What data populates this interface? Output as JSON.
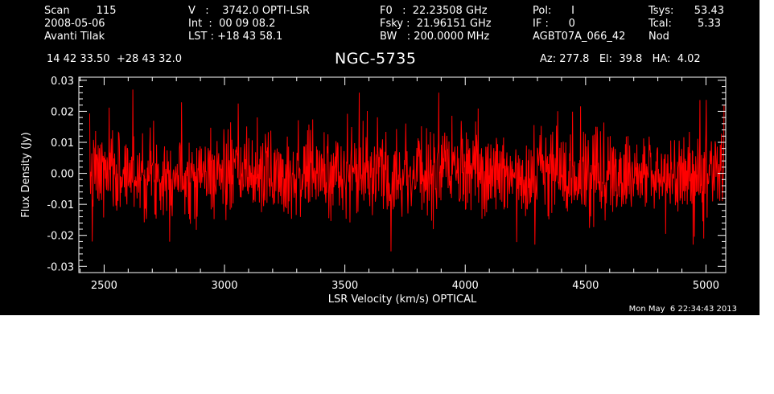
{
  "header": {
    "col1": [
      "Scan        115",
      "2008-05-06",
      "Avanti Tilak"
    ],
    "col2": [
      "V   :    3742.0 OPTI-LSR",
      "Int  :  00 09 08.2",
      "LST : +18 43 58.1"
    ],
    "col3": [
      "F0   :  22.23508 GHz",
      "Fsky :  21.96151 GHz",
      "BW   : 200.0000 MHz"
    ],
    "col4": [
      "Pol:      I",
      "IF :      0",
      "AGBT07A_066_42"
    ],
    "col5_labels": [
      "Tsys:",
      "Tcal:",
      "Nod"
    ],
    "col5_values": [
      "53.43",
      "5.33",
      ""
    ],
    "coords": "14 42 33.50  +28 43 32.0",
    "az_el_ha": "Az: 277.8   El:  39.8   HA:  4.02"
  },
  "timestamp": "Mon May  6 22:34:43 2013",
  "colors": {
    "background": "#000000",
    "axes": "#ffffff",
    "spectrum": "#ff0000"
  },
  "chart_data": {
    "type": "line",
    "title": "NGC-5735",
    "xlabel": "LSR Velocity (km/s) OPTICAL",
    "ylabel": "Flux Density (Jy)",
    "xlim": [
      2395,
      5082
    ],
    "ylim": [
      -0.032,
      0.031
    ],
    "xticks": [
      2500,
      3000,
      3500,
      4000,
      4500,
      5000
    ],
    "xtick_labels": [
      "2500",
      "3000",
      "3500",
      "4000",
      "4500",
      "5000"
    ],
    "yticks": [
      -0.03,
      -0.02,
      -0.01,
      0.0,
      0.01,
      0.02,
      0.03
    ],
    "ytick_labels": [
      "-0.03",
      "-0.02",
      "-0.01",
      "0.00",
      "0.01",
      "0.02",
      "0.03"
    ],
    "grid": false,
    "series": [
      {
        "color": "#ff0000",
        "x_range": [
          2440,
          5075
        ],
        "noise_sigma_jy": 0.007,
        "mean_jy": 0.0,
        "notable_points": [
          {
            "x": 2620,
            "y": 0.027
          },
          {
            "x": 2450,
            "y": -0.022
          },
          {
            "x": 3560,
            "y": 0.026
          },
          {
            "x": 3890,
            "y": 0.026
          },
          {
            "x": 4290,
            "y": -0.023
          },
          {
            "x": 4990,
            "y": -0.021
          },
          {
            "x": 5075,
            "y": 0.022
          }
        ]
      }
    ]
  }
}
